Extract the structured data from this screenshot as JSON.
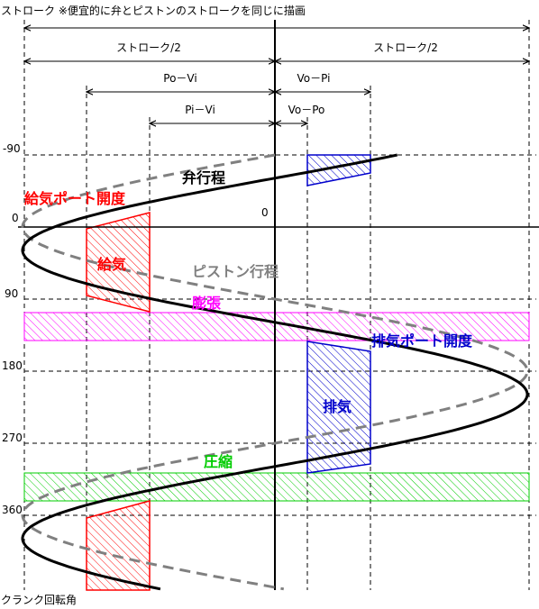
{
  "title": "ストローク ※便宜的に弁とピストンのストロークを同じに描画",
  "dimensions": {
    "stroke_half_left": "ストローク/2",
    "stroke_half_right": "ストローク/2",
    "po_vi": "Po－Vi",
    "vo_pi": "Vo－Pi",
    "pi_vi": "Pi－Vi",
    "vo_po": "Vo－Po"
  },
  "angle_labels": {
    "m90": "-90",
    "a0": "0",
    "a90": "90",
    "a180": "180",
    "a270": "270",
    "a360": "360",
    "center_zero": "0"
  },
  "axis_label": "クランク回転角",
  "labels": {
    "valve_stroke": "弁行程",
    "piston_stroke": "ピストン行程",
    "intake_port_opening": "給気ポート開度",
    "intake": "給気",
    "expansion": "膨張",
    "exhaust_port_opening": "排気ポート開度",
    "exhaust": "排気",
    "compression": "圧縮"
  },
  "colors": {
    "intake": "#ff0000",
    "exhaust": "#0000cc",
    "expansion": "#ff00ff",
    "compression": "#00cc00",
    "piston_curve": "#808080",
    "valve_curve": "#000000"
  }
}
